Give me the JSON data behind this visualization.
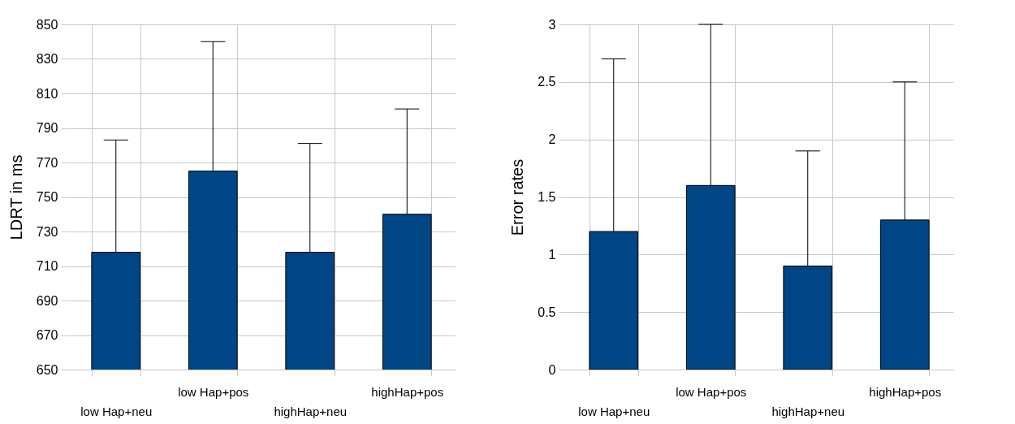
{
  "chart_data": [
    {
      "type": "bar",
      "ylabel": "LDRT in ms",
      "categories": [
        "low Hap+neu",
        "low Hap+pos",
        "highHap+neu",
        "highHap+pos"
      ],
      "color": "#004586",
      "values": [
        718,
        765,
        718,
        740
      ],
      "errors": [
        [
          718,
          783
        ],
        [
          765,
          840
        ],
        [
          718,
          781
        ],
        [
          740,
          801
        ]
      ],
      "ylim": [
        650,
        850
      ],
      "yticks": [
        650,
        670,
        690,
        710,
        730,
        750,
        770,
        790,
        810,
        830,
        850
      ],
      "grid": true
    },
    {
      "type": "bar",
      "ylabel": "Error rates",
      "categories": [
        "low Hap+neu",
        "low Hap+pos",
        "highHap+neu",
        "highHap+pos"
      ],
      "color": "#004586",
      "values": [
        1.2,
        1.6,
        0.9,
        1.3
      ],
      "errors": [
        [
          1.2,
          2.7
        ],
        [
          1.6,
          3.0
        ],
        [
          0.9,
          1.9
        ],
        [
          1.3,
          2.5
        ]
      ],
      "ylim": [
        0,
        3
      ],
      "yticks": [
        0,
        0.5,
        1,
        1.5,
        2,
        2.5,
        3
      ],
      "grid": true
    }
  ]
}
